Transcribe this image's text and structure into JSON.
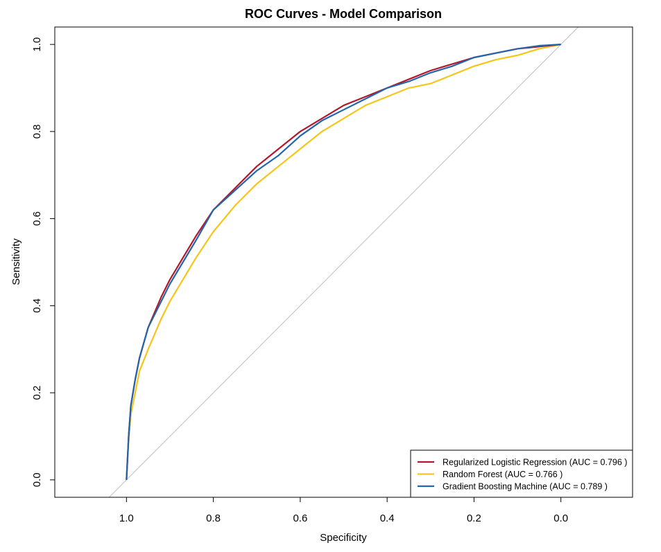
{
  "chart_data": {
    "type": "line",
    "title": "ROC Curves - Model Comparison",
    "xlabel": "Specificity",
    "ylabel": "Sensitivity",
    "xlim": [
      1.165,
      -0.165
    ],
    "ylim": [
      -0.04,
      1.04
    ],
    "x_reversed": true,
    "grid": false,
    "legend_position": "bottom-right",
    "x_ticks": [
      "1.0",
      "0.8",
      "0.6",
      "0.4",
      "0.2",
      "0.0"
    ],
    "x_tick_values": [
      1.0,
      0.8,
      0.6,
      0.4,
      0.2,
      0.0
    ],
    "y_ticks": [
      "0.0",
      "0.2",
      "0.4",
      "0.6",
      "0.8",
      "1.0"
    ],
    "y_tick_values": [
      0.0,
      0.2,
      0.4,
      0.6,
      0.8,
      1.0
    ],
    "reference_line": {
      "label": "",
      "color": "#bebebe",
      "points": [
        [
          1,
          0
        ],
        [
          0,
          1
        ]
      ]
    },
    "series": [
      {
        "name": "Regularized Logistic Regression (AUC = 0.796 )",
        "color": "#b2182b",
        "points": [
          [
            1.0,
            0.0
          ],
          [
            0.995,
            0.1
          ],
          [
            0.99,
            0.17
          ],
          [
            0.98,
            0.23
          ],
          [
            0.97,
            0.28
          ],
          [
            0.95,
            0.35
          ],
          [
            0.92,
            0.42
          ],
          [
            0.9,
            0.46
          ],
          [
            0.87,
            0.51
          ],
          [
            0.84,
            0.56
          ],
          [
            0.8,
            0.62
          ],
          [
            0.75,
            0.67
          ],
          [
            0.7,
            0.72
          ],
          [
            0.65,
            0.76
          ],
          [
            0.6,
            0.8
          ],
          [
            0.55,
            0.83
          ],
          [
            0.5,
            0.86
          ],
          [
            0.45,
            0.88
          ],
          [
            0.4,
            0.9
          ],
          [
            0.35,
            0.92
          ],
          [
            0.3,
            0.94
          ],
          [
            0.25,
            0.955
          ],
          [
            0.2,
            0.97
          ],
          [
            0.15,
            0.98
          ],
          [
            0.1,
            0.99
          ],
          [
            0.05,
            0.995
          ],
          [
            0.0,
            1.0
          ]
        ]
      },
      {
        "name": "Random Forest (AUC = 0.766 )",
        "color": "#f5c518",
        "points": [
          [
            1.0,
            0.0
          ],
          [
            0.995,
            0.09
          ],
          [
            0.99,
            0.15
          ],
          [
            0.98,
            0.2
          ],
          [
            0.97,
            0.25
          ],
          [
            0.95,
            0.3
          ],
          [
            0.92,
            0.37
          ],
          [
            0.9,
            0.41
          ],
          [
            0.87,
            0.46
          ],
          [
            0.84,
            0.51
          ],
          [
            0.8,
            0.57
          ],
          [
            0.75,
            0.63
          ],
          [
            0.7,
            0.68
          ],
          [
            0.65,
            0.72
          ],
          [
            0.6,
            0.76
          ],
          [
            0.55,
            0.8
          ],
          [
            0.5,
            0.83
          ],
          [
            0.45,
            0.86
          ],
          [
            0.4,
            0.88
          ],
          [
            0.35,
            0.9
          ],
          [
            0.3,
            0.91
          ],
          [
            0.25,
            0.93
          ],
          [
            0.2,
            0.95
          ],
          [
            0.15,
            0.965
          ],
          [
            0.1,
            0.975
          ],
          [
            0.05,
            0.99
          ],
          [
            0.0,
            1.0
          ]
        ]
      },
      {
        "name": "Gradient Boosting Machine (AUC = 0.789 )",
        "color": "#2166ac",
        "points": [
          [
            1.0,
            0.0
          ],
          [
            0.995,
            0.1
          ],
          [
            0.99,
            0.17
          ],
          [
            0.98,
            0.23
          ],
          [
            0.97,
            0.28
          ],
          [
            0.95,
            0.35
          ],
          [
            0.92,
            0.41
          ],
          [
            0.9,
            0.45
          ],
          [
            0.87,
            0.5
          ],
          [
            0.84,
            0.55
          ],
          [
            0.8,
            0.62
          ],
          [
            0.75,
            0.665
          ],
          [
            0.7,
            0.71
          ],
          [
            0.65,
            0.745
          ],
          [
            0.6,
            0.79
          ],
          [
            0.55,
            0.825
          ],
          [
            0.5,
            0.85
          ],
          [
            0.45,
            0.875
          ],
          [
            0.4,
            0.9
          ],
          [
            0.35,
            0.915
          ],
          [
            0.3,
            0.935
          ],
          [
            0.25,
            0.95
          ],
          [
            0.2,
            0.97
          ],
          [
            0.15,
            0.98
          ],
          [
            0.1,
            0.99
          ],
          [
            0.05,
            0.997
          ],
          [
            0.0,
            1.0
          ]
        ]
      }
    ]
  }
}
